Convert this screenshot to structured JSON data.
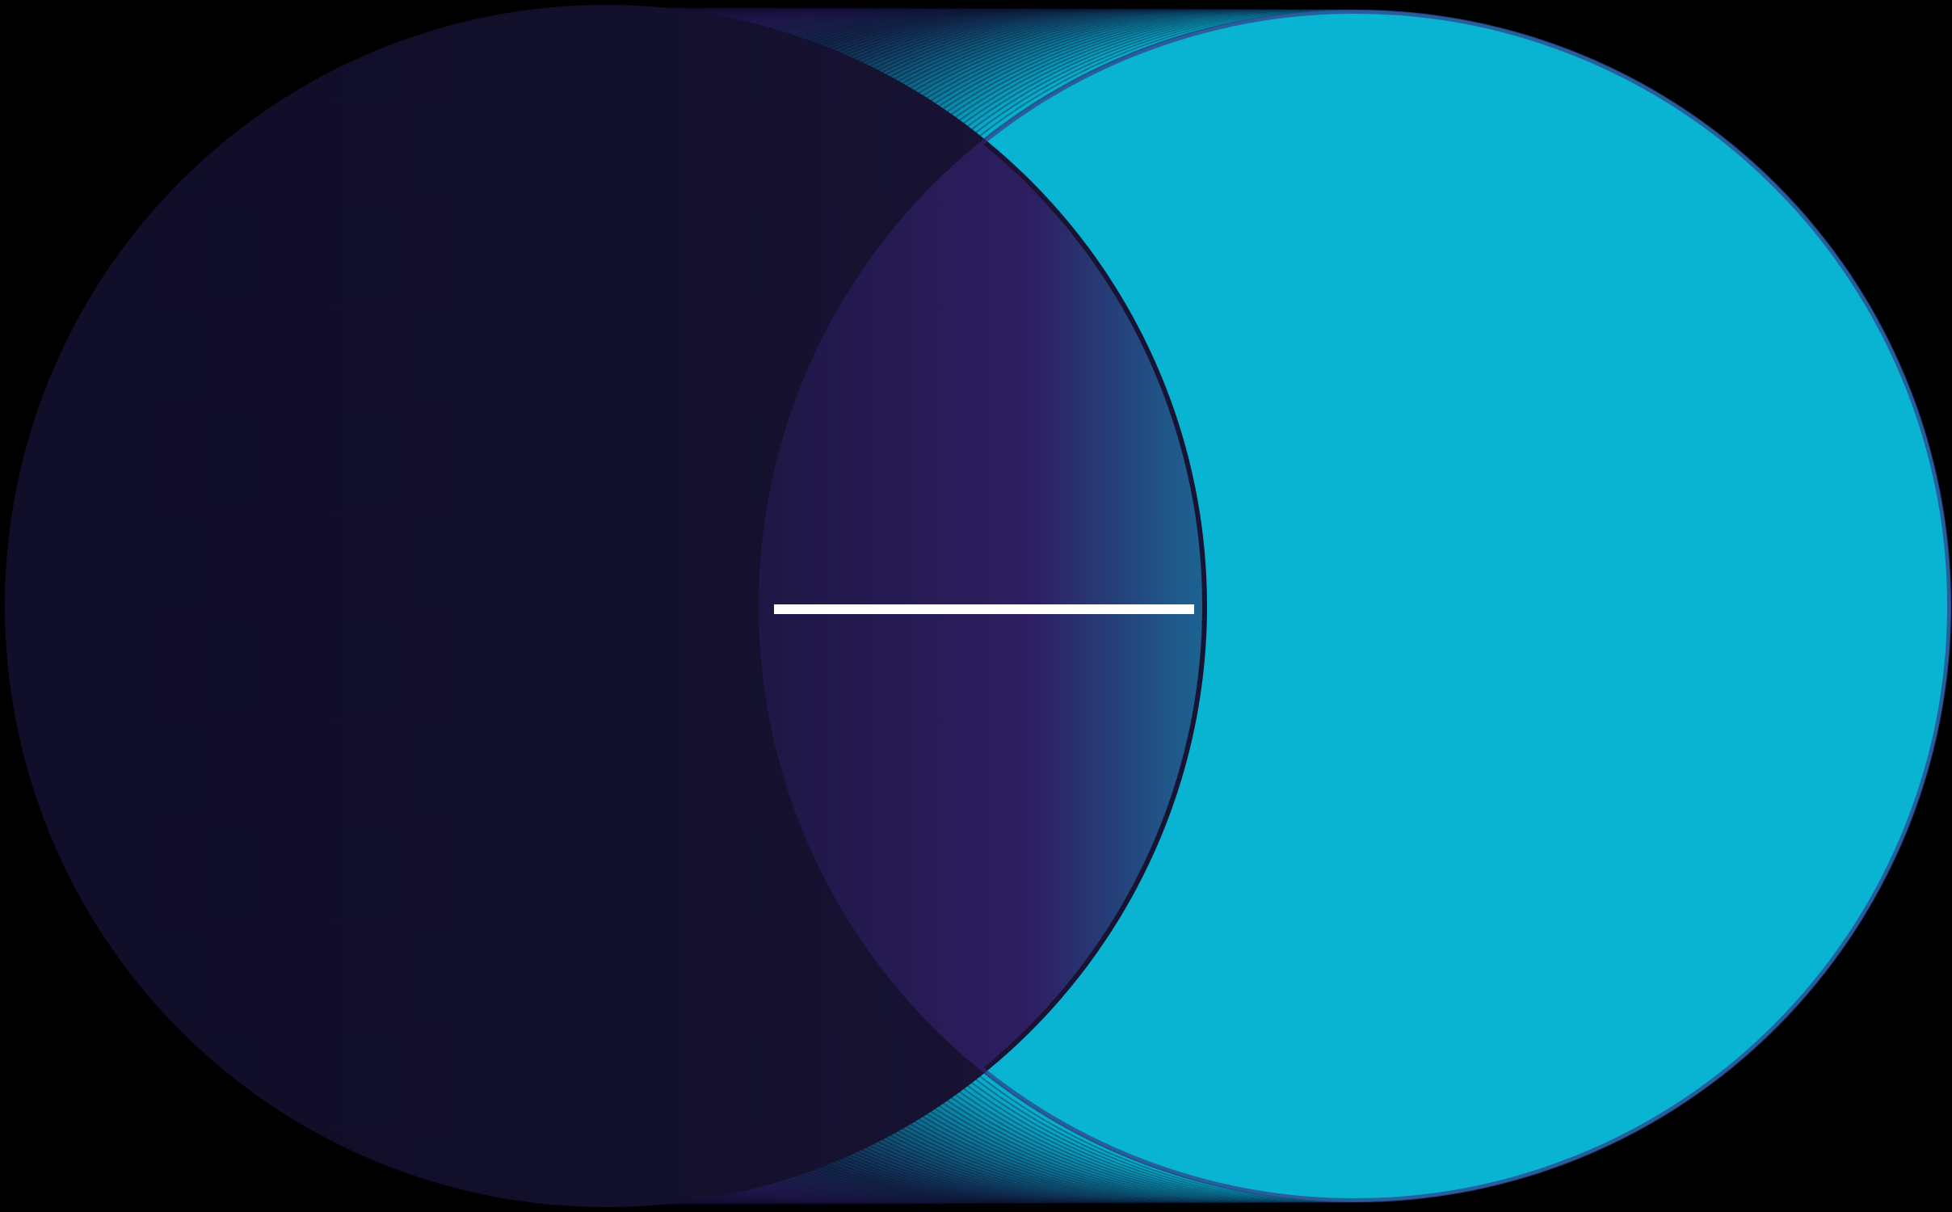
{
  "artwork": {
    "background_color": "#000000",
    "ring_count": 90,
    "palette": {
      "left_dark": "#110e29",
      "mid_purple": "#2b1b5a",
      "deep_navy": "#14284e",
      "right_cyan": "#08b4d2",
      "lens_left": "#1f1745",
      "lens_mid": "#2e1e62",
      "lens_right": "#1d6190",
      "line_color": "#ffffff"
    },
    "shapes": [
      "left-circle",
      "right-ring-tunnel",
      "lens-overlap",
      "center-line"
    ]
  }
}
